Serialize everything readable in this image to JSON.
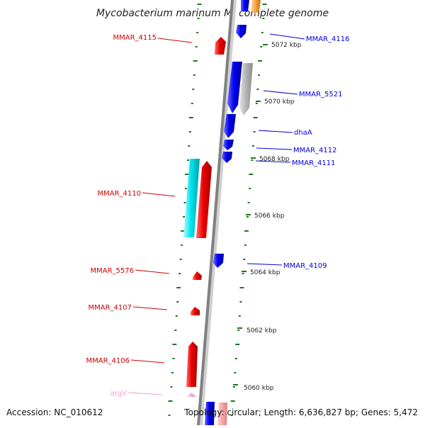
{
  "title": "Mycobacterium marinum M, complete genome",
  "footer": {
    "accession": "Accession: NC_010612",
    "summary": "Topology: circular; Length: 6,636,827 bp; Genes: 5,472"
  },
  "colors": {
    "forward": "#ee0000",
    "reverse": "#0000ee",
    "cyan_feature": "#00e5f0",
    "gray_feature": "#b4b4b4",
    "orange_feature": "#f7a23c",
    "pink_feature": "#f0a0d0",
    "backbone": "#8a8a8a",
    "ticks": "#1a7a1a"
  },
  "genes": [
    {
      "id": "MMAR_4115",
      "label": "MMAR_4115",
      "color": "red"
    },
    {
      "id": "MMAR_4110",
      "label": "MMAR_4110",
      "color": "red"
    },
    {
      "id": "MMAR_5576",
      "label": "MMAR_5576",
      "color": "red"
    },
    {
      "id": "MMAR_4107",
      "label": "MMAR_4107",
      "color": "red"
    },
    {
      "id": "MMAR_4106",
      "label": "MMAR_4106",
      "color": "red"
    },
    {
      "id": "argV",
      "label": "argV",
      "color": "pink"
    },
    {
      "id": "MMAR_4116",
      "label": "MMAR_4116",
      "color": "blue"
    },
    {
      "id": "MMAR_5521",
      "label": "MMAR_5521",
      "color": "blue"
    },
    {
      "id": "dhaA",
      "label": "dhaA",
      "color": "blue"
    },
    {
      "id": "MMAR_4112",
      "label": "MMAR_4112",
      "color": "blue"
    },
    {
      "id": "MMAR_4111",
      "label": "MMAR_4111",
      "color": "blue"
    },
    {
      "id": "MMAR_4109",
      "label": "MMAR_4109",
      "color": "blue"
    }
  ],
  "scale_labels": [
    "5072 kbp",
    "5070 kbp",
    "5068 kbp",
    "5066 kbp",
    "5064 kbp",
    "5062 kbp",
    "5060 kbp"
  ]
}
